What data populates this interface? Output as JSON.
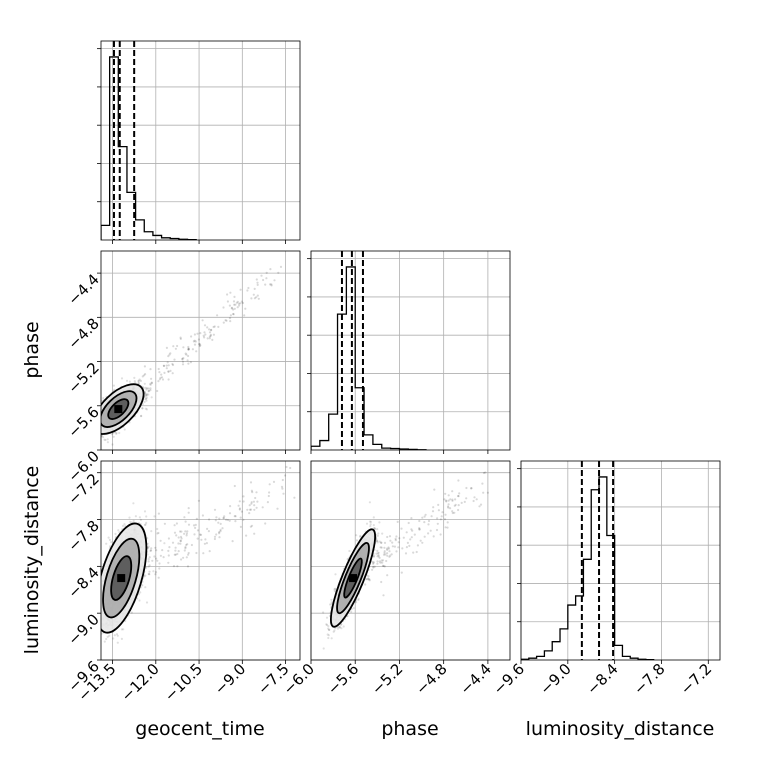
{
  "chart_data": {
    "type": "corner",
    "title": "",
    "parameters": [
      "geocent_time",
      "phase",
      "luminosity_distance"
    ],
    "axis_labels": {
      "x": [
        "geocent_time",
        "phase",
        "luminosity_distance"
      ],
      "y": [
        "phase",
        "luminosity_distance"
      ]
    },
    "ranges": {
      "geocent_time": [
        -13.9,
        -7.0
      ],
      "phase": [
        -6.0,
        -4.2
      ],
      "luminosity_distance": [
        -9.6,
        -7.05
      ]
    },
    "ticks": {
      "geocent_time": [
        "−13.5",
        "−12.0",
        "−10.5",
        "−9.0",
        "−7.5"
      ],
      "phase": [
        "−6.0",
        "−5.6",
        "−5.2",
        "−4.8",
        "−4.4"
      ],
      "luminosity_distance": [
        "−9.6",
        "−9.0",
        "−8.4",
        "−7.8",
        "−7.2"
      ]
    },
    "tick_values": {
      "geocent_time": [
        -13.5,
        -12.0,
        -10.5,
        -9.0,
        -7.5
      ],
      "phase": [
        -6.0,
        -5.6,
        -5.2,
        -4.8,
        -4.4
      ],
      "luminosity_distance": [
        -9.6,
        -9.0,
        -8.4,
        -7.8,
        -7.2
      ]
    },
    "histograms": {
      "geocent_time": {
        "bin_edges": [
          -13.9,
          -13.6,
          -13.3,
          -13.0,
          -12.7,
          -12.4,
          -12.1,
          -11.8,
          -11.5,
          -11.2,
          -10.9,
          -10.6
        ],
        "counts": [
          0.08,
          1.0,
          0.51,
          0.26,
          0.11,
          0.045,
          0.025,
          0.012,
          0.008,
          0.004,
          0.002
        ]
      },
      "phase": {
        "bin_edges": [
          -6.0,
          -5.92,
          -5.84,
          -5.76,
          -5.68,
          -5.6,
          -5.52,
          -5.44,
          -5.36,
          -5.28,
          -5.2,
          -5.12,
          -5.04,
          -4.96
        ],
        "counts": [
          0.02,
          0.05,
          0.19,
          0.72,
          0.97,
          0.33,
          0.08,
          0.03,
          0.01,
          0.008,
          0.005,
          0.003,
          0.001
        ]
      },
      "luminosity_distance": {
        "bin_edges": [
          -9.6,
          -9.5,
          -9.4,
          -9.3,
          -9.2,
          -9.1,
          -9.0,
          -8.9,
          -8.8,
          -8.7,
          -8.6,
          -8.5,
          -8.4,
          -8.3,
          -8.2,
          -8.1,
          -8.0,
          -7.9
        ],
        "counts": [
          0.004,
          0.01,
          0.02,
          0.05,
          0.1,
          0.17,
          0.3,
          0.35,
          0.55,
          0.93,
          1.0,
          0.68,
          0.08,
          0.02,
          0.01,
          0.004,
          0.002
        ]
      }
    },
    "quantiles": {
      "geocent_time": [
        -13.45,
        -13.25,
        -12.75
      ],
      "phase": [
        -5.72,
        -5.63,
        -5.53
      ],
      "luminosity_distance": [
        -8.82,
        -8.6,
        -8.42
      ]
    },
    "scatter_2d": {
      "phase_vs_geocent_time": {
        "center": [
          -13.3,
          -5.63
        ],
        "spread": [
          0.35,
          0.09
        ],
        "corr": 0.6,
        "tail_toward": [
          -7.7,
          -4.35
        ]
      },
      "luminosity_distance_vs_geocent_time": {
        "center": [
          -13.2,
          -8.55
        ],
        "spread": [
          0.35,
          0.28
        ],
        "corr": 0.55,
        "tail_toward": [
          -7.5,
          -7.35
        ]
      },
      "luminosity_distance_vs_phase": {
        "center": [
          -5.62,
          -8.55
        ],
        "spread": [
          0.08,
          0.25
        ],
        "corr": 0.85,
        "tail_toward": [
          -4.45,
          -7.35
        ]
      }
    },
    "grid": true,
    "colors": {
      "points": "#000000",
      "contour_fill_outer": "#e8e8e8",
      "contour_fill_mid": "#a8a8a8",
      "contour_fill_inner": "#555555",
      "grid": "#b0b0b0"
    }
  }
}
